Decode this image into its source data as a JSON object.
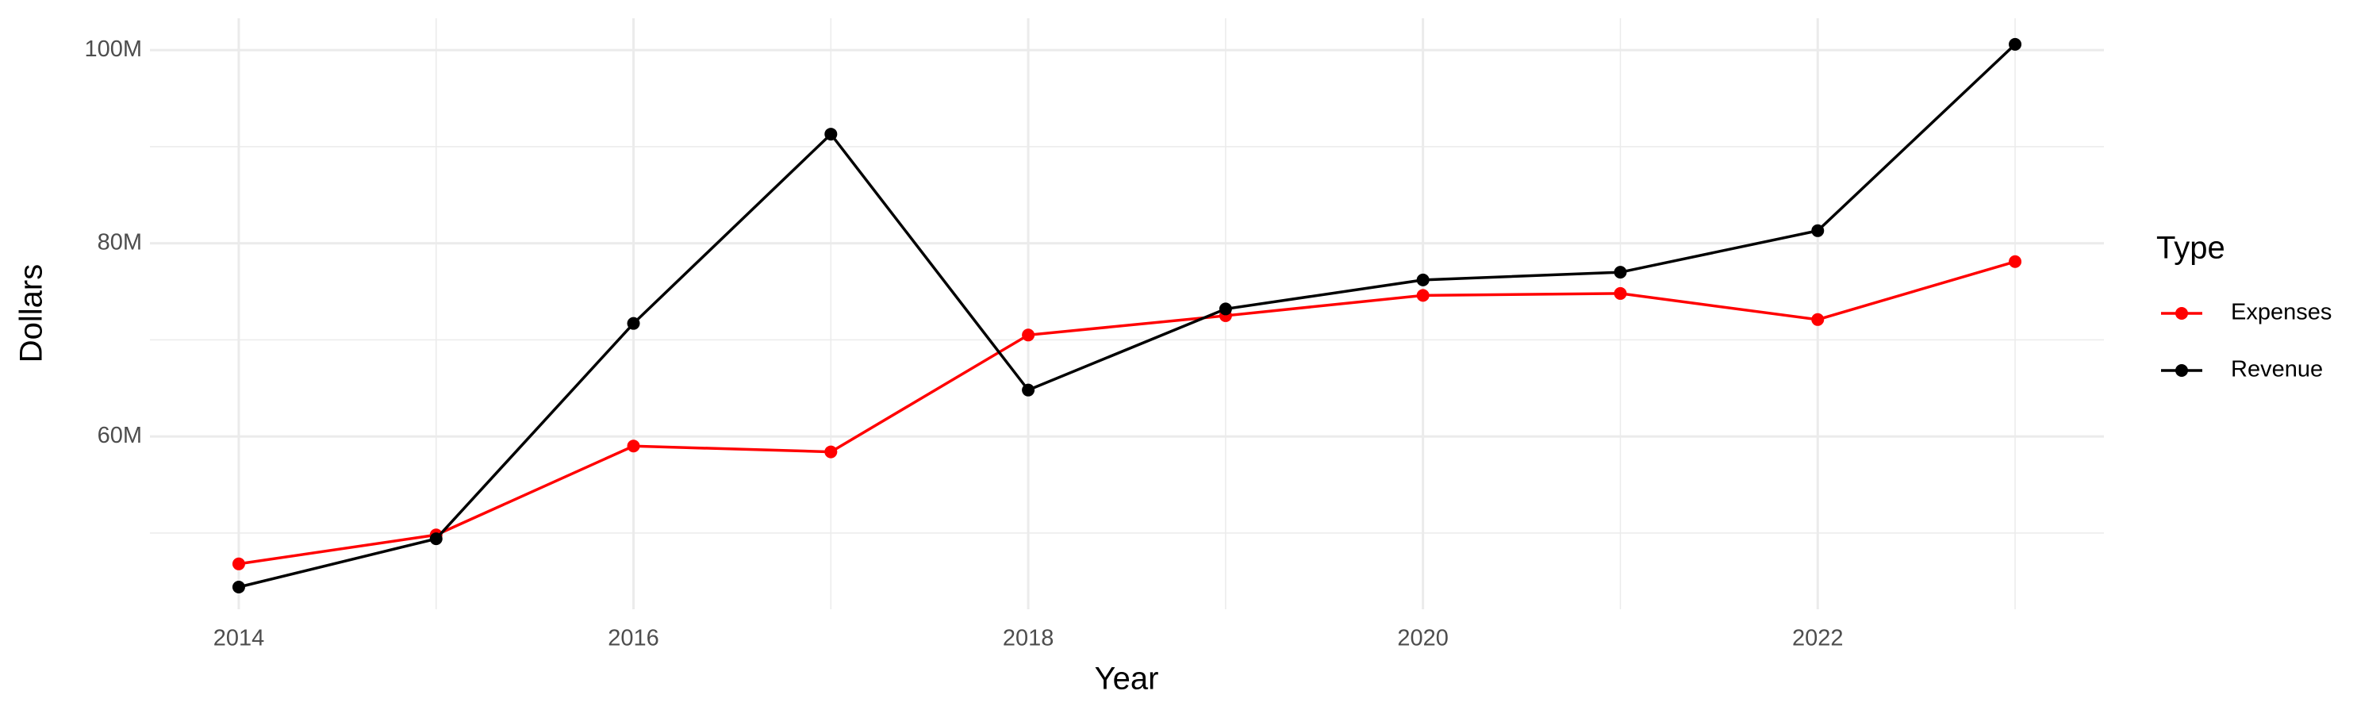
{
  "chart_data": {
    "type": "line",
    "x_label": "Year",
    "y_label": "Dollars",
    "x": [
      2014,
      2015,
      2016,
      2017,
      2018,
      2019,
      2020,
      2021,
      2022,
      2023
    ],
    "series": [
      {
        "name": "Expenses",
        "color": "#ff0000",
        "values": [
          46800000,
          49800000,
          59000000,
          58400000,
          70500000,
          72500000,
          74600000,
          74800000,
          72100000,
          78100000
        ]
      },
      {
        "name": "Revenue",
        "color": "#000000",
        "values": [
          44400000,
          49400000,
          71700000,
          91300000,
          64800000,
          73200000,
          76200000,
          77000000,
          81300000,
          100600000
        ]
      }
    ],
    "xlim": [
      2013.55,
      2023.45
    ],
    "ylim": [
      42100000,
      103300000
    ],
    "xticks": [
      2014,
      2016,
      2018,
      2020,
      2022
    ],
    "yticks": [
      {
        "value": 60000000,
        "label": "60M"
      },
      {
        "value": 80000000,
        "label": "80M"
      },
      {
        "value": 100000000,
        "label": "100M"
      }
    ],
    "grid": true,
    "legend_title": "Type",
    "legend_position": "right"
  }
}
